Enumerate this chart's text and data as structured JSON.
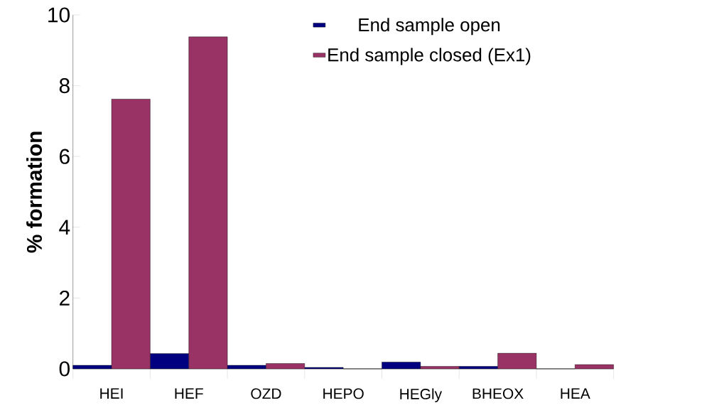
{
  "chart_data": {
    "type": "bar",
    "ylabel": "% formation",
    "categories": [
      "HEI",
      "HEF",
      "OZD",
      "HEPO",
      "HEGly",
      "BHEOX",
      "HEA"
    ],
    "series": [
      {
        "name": "End sample open",
        "color": "#000080",
        "values": [
          0.1,
          0.43,
          0.1,
          0.04,
          0.19,
          0.07,
          0
        ]
      },
      {
        "name": "End sample closed (Ex1)",
        "color": "#993366",
        "values": [
          7.62,
          9.38,
          0.15,
          0,
          0.07,
          0.44,
          0.12
        ]
      }
    ],
    "ylim": [
      0,
      10
    ],
    "yticks": [
      0,
      2,
      4,
      6,
      8,
      10
    ],
    "grid": false,
    "legend": "top right"
  }
}
